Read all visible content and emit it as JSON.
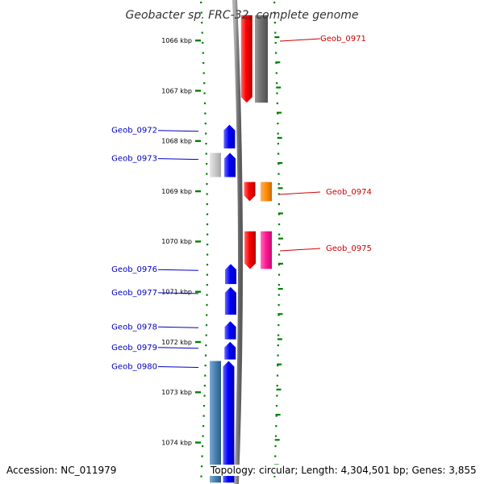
{
  "title": "Geobacter sp. FRC-32, complete genome",
  "accession": "Accession: NC_011979",
  "stats": "Topology: circular; Length: 4,304,501 bp; Genes: 3,855",
  "axis": {
    "ticks": [
      "1066 kbp",
      "1067 kbp",
      "1068 kbp",
      "1069 kbp",
      "1070 kbp",
      "1071 kbp",
      "1072 kbp",
      "1073 kbp",
      "1074 kbp"
    ]
  },
  "genes_left": [
    {
      "id": "Geob_0972",
      "color": "#0000ff",
      "start_kbp": 1067.68,
      "end_kbp": 1068.15
    },
    {
      "id": "Geob_0973",
      "color": "#0000ff",
      "start_kbp": 1068.24,
      "end_kbp": 1068.72
    },
    {
      "id": "Geob_0976",
      "color": "#0000ff",
      "start_kbp": 1070.45,
      "end_kbp": 1070.85
    },
    {
      "id": "Geob_0977",
      "color": "#0000ff",
      "start_kbp": 1070.91,
      "end_kbp": 1071.46
    },
    {
      "id": "Geob_0978",
      "color": "#0000ff",
      "start_kbp": 1071.59,
      "end_kbp": 1071.95
    },
    {
      "id": "Geob_0979",
      "color": "#0000ff",
      "start_kbp": 1072.0,
      "end_kbp": 1072.35
    },
    {
      "id": "Geob_0980",
      "color": "#0000ff",
      "start_kbp": 1072.38,
      "end_kbp": 1074.8
    }
  ],
  "genes_right": [
    {
      "id": "Geob_0971",
      "color": "#ff0000",
      "start_kbp": 1065.5,
      "end_kbp": 1067.24
    },
    {
      "id": "Geob_0974",
      "color": "#ff0000",
      "start_kbp": 1068.82,
      "end_kbp": 1069.2
    },
    {
      "id": "Geob_0975",
      "color": "#ff0000",
      "start_kbp": 1069.8,
      "end_kbp": 1070.55
    }
  ],
  "features_secondary": [
    {
      "color": "#c8c8c8",
      "start_kbp": 1068.24,
      "end_kbp": 1068.72,
      "side": "left-outer"
    },
    {
      "color": "#4682b4",
      "start_kbp": 1072.38,
      "end_kbp": 1074.8,
      "side": "left-outer"
    },
    {
      "color": "#707070",
      "start_kbp": 1065.5,
      "end_kbp": 1067.24,
      "side": "right-outer"
    },
    {
      "color": "#ff8c00",
      "start_kbp": 1068.82,
      "end_kbp": 1069.2,
      "side": "right-outer"
    },
    {
      "color": "#ff1493",
      "start_kbp": 1069.8,
      "end_kbp": 1070.55,
      "side": "right-outer"
    }
  ],
  "colors": {
    "backbone": "#8c8c8c",
    "tick": "#008000",
    "label_left": "#0000c0",
    "label_right": "#cc0000"
  }
}
